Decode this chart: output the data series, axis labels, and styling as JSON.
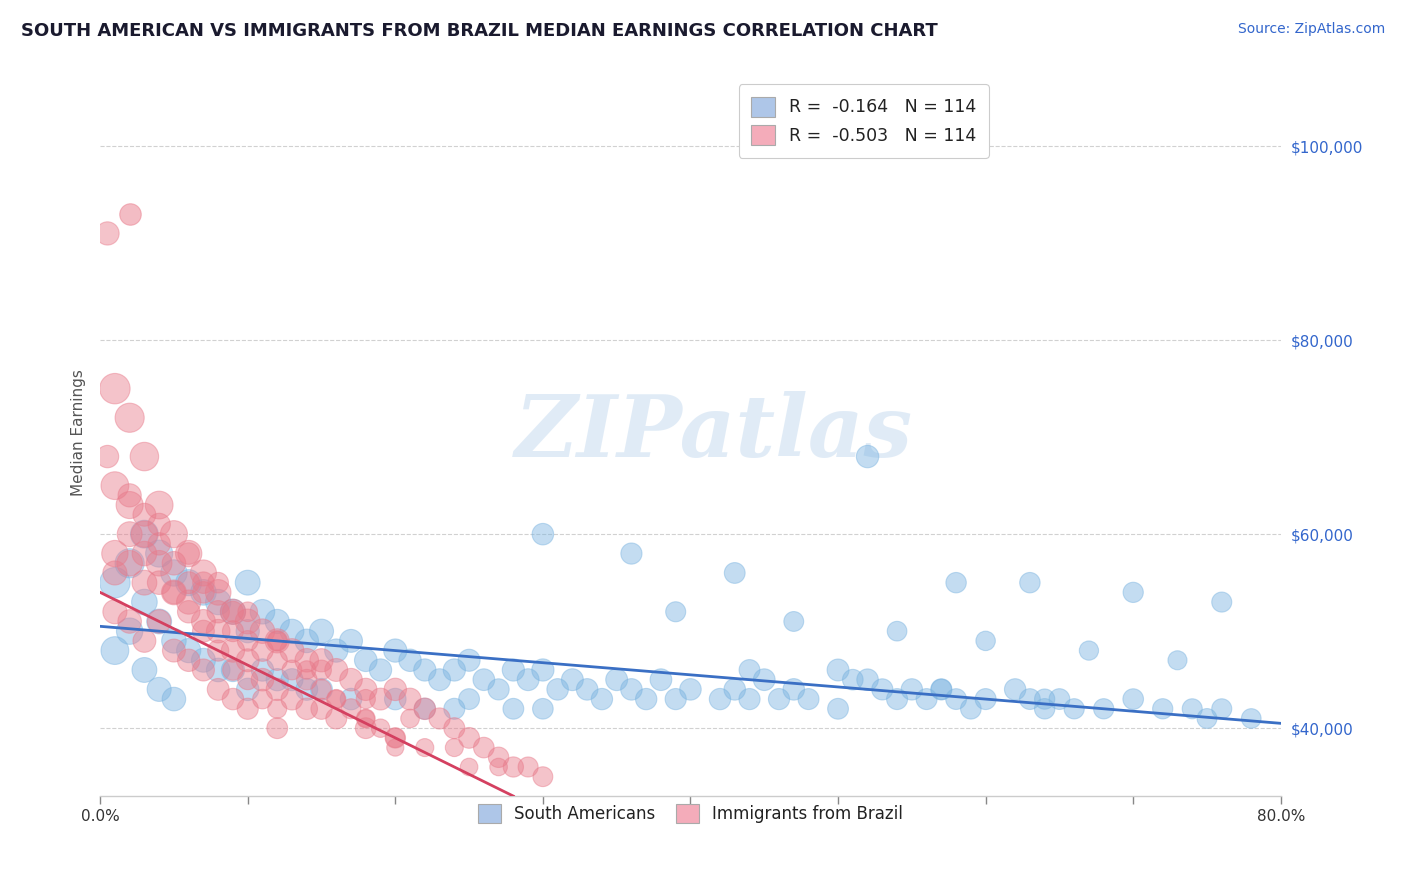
{
  "title": "SOUTH AMERICAN VS IMMIGRANTS FROM BRAZIL MEDIAN EARNINGS CORRELATION CHART",
  "title_color": "#1a1a2e",
  "source_text": "Source: ZipAtlas.com",
  "ylabel": "Median Earnings",
  "xlim": [
    0.0,
    0.8
  ],
  "ylim": [
    33000,
    108000
  ],
  "yticks": [
    40000,
    60000,
    80000,
    100000
  ],
  "yticklabels": [
    "$40,000",
    "$60,000",
    "$80,000",
    "$100,000"
  ],
  "ytick_color": "#3366CC",
  "legend_r1": "R =  -0.164   N = 114",
  "legend_r2": "R =  -0.503   N = 114",
  "legend_color_blue": "#AEC6E8",
  "legend_color_pink": "#F4ACBA",
  "scatter_blue_color": "#7ab3e0",
  "scatter_pink_color": "#e87a8a",
  "trendline_blue_color": "#3a6fc4",
  "trendline_pink_color": "#d44060",
  "watermark_text": "ZIPatlas",
  "background_color": "#FFFFFF",
  "grid_color": "#CCCCCC",
  "blue_trend_x0": 0.0,
  "blue_trend_y0": 50500,
  "blue_trend_x1": 0.8,
  "blue_trend_y1": 40500,
  "pink_trend_x0": 0.0,
  "pink_trend_y0": 54000,
  "pink_trend_x1": 0.28,
  "pink_trend_y1": 33000,
  "sa_x": [
    0.01,
    0.01,
    0.02,
    0.02,
    0.03,
    0.03,
    0.03,
    0.04,
    0.04,
    0.04,
    0.05,
    0.05,
    0.05,
    0.06,
    0.06,
    0.07,
    0.07,
    0.08,
    0.08,
    0.09,
    0.09,
    0.1,
    0.1,
    0.1,
    0.11,
    0.11,
    0.12,
    0.12,
    0.13,
    0.13,
    0.14,
    0.14,
    0.15,
    0.15,
    0.16,
    0.17,
    0.17,
    0.18,
    0.19,
    0.2,
    0.2,
    0.21,
    0.22,
    0.22,
    0.23,
    0.24,
    0.24,
    0.25,
    0.25,
    0.26,
    0.27,
    0.28,
    0.28,
    0.29,
    0.3,
    0.3,
    0.31,
    0.32,
    0.33,
    0.34,
    0.35,
    0.36,
    0.37,
    0.38,
    0.39,
    0.4,
    0.42,
    0.43,
    0.44,
    0.45,
    0.46,
    0.47,
    0.48,
    0.5,
    0.5,
    0.52,
    0.53,
    0.54,
    0.55,
    0.56,
    0.57,
    0.58,
    0.59,
    0.6,
    0.62,
    0.63,
    0.64,
    0.65,
    0.66,
    0.68,
    0.7,
    0.72,
    0.74,
    0.75,
    0.76,
    0.78,
    0.3,
    0.36,
    0.43,
    0.52,
    0.58,
    0.63,
    0.7,
    0.76,
    0.39,
    0.47,
    0.54,
    0.6,
    0.67,
    0.73,
    0.44,
    0.51,
    0.57,
    0.64
  ],
  "sa_y": [
    55000,
    48000,
    57000,
    50000,
    60000,
    53000,
    46000,
    58000,
    51000,
    44000,
    56000,
    49000,
    43000,
    55000,
    48000,
    54000,
    47000,
    53000,
    46000,
    52000,
    46000,
    55000,
    50000,
    44000,
    52000,
    46000,
    51000,
    45000,
    50000,
    45000,
    49000,
    44000,
    50000,
    44000,
    48000,
    49000,
    43000,
    47000,
    46000,
    48000,
    43000,
    47000,
    46000,
    42000,
    45000,
    46000,
    42000,
    47000,
    43000,
    45000,
    44000,
    46000,
    42000,
    45000,
    46000,
    42000,
    44000,
    45000,
    44000,
    43000,
    45000,
    44000,
    43000,
    45000,
    43000,
    44000,
    43000,
    44000,
    43000,
    45000,
    43000,
    44000,
    43000,
    46000,
    42000,
    45000,
    44000,
    43000,
    44000,
    43000,
    44000,
    43000,
    42000,
    43000,
    44000,
    43000,
    42000,
    43000,
    42000,
    42000,
    43000,
    42000,
    42000,
    41000,
    42000,
    41000,
    60000,
    58000,
    56000,
    68000,
    55000,
    55000,
    54000,
    53000,
    52000,
    51000,
    50000,
    49000,
    48000,
    47000,
    46000,
    45000,
    44000,
    43000
  ],
  "sa_s": [
    120,
    100,
    110,
    90,
    100,
    85,
    80,
    95,
    80,
    75,
    90,
    78,
    72,
    88,
    76,
    85,
    74,
    83,
    72,
    82,
    70,
    80,
    70,
    65,
    78,
    65,
    76,
    64,
    74,
    63,
    72,
    62,
    75,
    62,
    70,
    68,
    60,
    66,
    64,
    70,
    60,
    65,
    64,
    58,
    62,
    64,
    57,
    63,
    56,
    61,
    58,
    64,
    56,
    62,
    64,
    55,
    60,
    62,
    60,
    59,
    62,
    60,
    59,
    61,
    58,
    60,
    59,
    60,
    58,
    61,
    58,
    60,
    57,
    62,
    56,
    60,
    58,
    57,
    59,
    57,
    58,
    56,
    55,
    57,
    59,
    56,
    54,
    56,
    53,
    53,
    55,
    53,
    52,
    51,
    52,
    50,
    60,
    58,
    56,
    65,
    54,
    54,
    53,
    52,
    52,
    51,
    50,
    49,
    48,
    47,
    56,
    55,
    54,
    53
  ],
  "br_x": [
    0.005,
    0.005,
    0.01,
    0.01,
    0.01,
    0.01,
    0.02,
    0.02,
    0.02,
    0.02,
    0.03,
    0.03,
    0.03,
    0.03,
    0.04,
    0.04,
    0.04,
    0.05,
    0.05,
    0.05,
    0.06,
    0.06,
    0.06,
    0.07,
    0.07,
    0.07,
    0.08,
    0.08,
    0.08,
    0.09,
    0.09,
    0.09,
    0.1,
    0.1,
    0.1,
    0.11,
    0.11,
    0.12,
    0.12,
    0.12,
    0.13,
    0.13,
    0.14,
    0.14,
    0.15,
    0.15,
    0.16,
    0.16,
    0.17,
    0.18,
    0.18,
    0.19,
    0.2,
    0.2,
    0.21,
    0.22,
    0.23,
    0.24,
    0.25,
    0.26,
    0.27,
    0.28,
    0.29,
    0.3,
    0.05,
    0.08,
    0.11,
    0.14,
    0.17,
    0.2,
    0.03,
    0.06,
    0.09,
    0.12,
    0.15,
    0.18,
    0.04,
    0.07,
    0.1,
    0.13,
    0.16,
    0.19,
    0.22,
    0.25,
    0.01,
    0.02,
    0.03,
    0.04,
    0.05,
    0.06,
    0.07,
    0.08,
    0.09,
    0.1,
    0.11,
    0.12,
    0.07,
    0.09,
    0.12,
    0.15,
    0.18,
    0.21,
    0.24,
    0.27,
    0.02,
    0.04,
    0.06,
    0.08,
    0.1,
    0.12,
    0.14,
    0.16,
    0.18,
    0.2
  ],
  "br_y": [
    91000,
    68000,
    75000,
    65000,
    58000,
    52000,
    72000,
    63000,
    57000,
    51000,
    68000,
    60000,
    55000,
    49000,
    63000,
    57000,
    51000,
    60000,
    54000,
    48000,
    58000,
    53000,
    47000,
    56000,
    51000,
    46000,
    54000,
    50000,
    44000,
    52000,
    48000,
    43000,
    51000,
    47000,
    42000,
    50000,
    45000,
    49000,
    44000,
    40000,
    48000,
    43000,
    47000,
    42000,
    47000,
    42000,
    46000,
    41000,
    45000,
    44000,
    40000,
    43000,
    44000,
    39000,
    43000,
    42000,
    41000,
    40000,
    39000,
    38000,
    37000,
    36000,
    36000,
    35000,
    57000,
    52000,
    48000,
    45000,
    42000,
    39000,
    62000,
    55000,
    50000,
    47000,
    44000,
    41000,
    59000,
    54000,
    49000,
    46000,
    43000,
    40000,
    38000,
    36000,
    56000,
    60000,
    58000,
    55000,
    54000,
    52000,
    50000,
    48000,
    46000,
    45000,
    43000,
    42000,
    55000,
    52000,
    49000,
    46000,
    43000,
    41000,
    38000,
    36000,
    64000,
    61000,
    58000,
    55000,
    52000,
    49000,
    46000,
    43000,
    41000,
    38000
  ],
  "br_s": [
    70,
    65,
    120,
    100,
    90,
    75,
    110,
    95,
    85,
    72,
    105,
    90,
    80,
    68,
    100,
    85,
    72,
    95,
    80,
    68,
    90,
    76,
    65,
    88,
    74,
    63,
    85,
    72,
    62,
    82,
    70,
    60,
    80,
    68,
    58,
    78,
    66,
    76,
    64,
    56,
    74,
    62,
    72,
    60,
    70,
    58,
    68,
    57,
    66,
    64,
    56,
    62,
    65,
    54,
    62,
    60,
    58,
    57,
    56,
    55,
    54,
    53,
    52,
    51,
    72,
    65,
    60,
    55,
    52,
    48,
    68,
    62,
    57,
    53,
    50,
    46,
    65,
    60,
    55,
    51,
    48,
    44,
    42,
    40,
    75,
    80,
    78,
    72,
    68,
    65,
    62,
    58,
    55,
    52,
    50,
    47,
    60,
    57,
    54,
    51,
    48,
    45,
    42,
    40,
    70,
    65,
    60,
    55,
    50,
    47,
    44,
    42,
    40,
    38
  ],
  "br_outlier_x": [
    0.02
  ],
  "br_outlier_y": [
    93000
  ],
  "br_outlier_s": [
    60
  ]
}
